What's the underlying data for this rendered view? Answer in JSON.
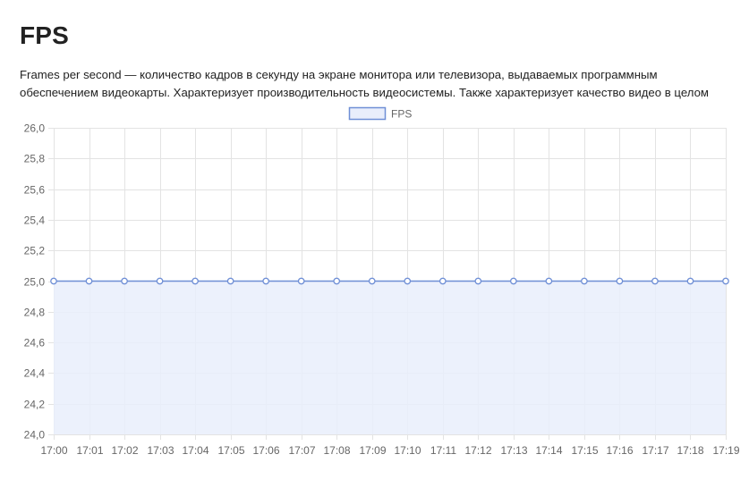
{
  "page": {
    "title": "FPS",
    "description_lines": [
      "Frames per second — количество кадров в секунду на экране монитора или телевизора, выдаваемых программным",
      "обеспечением видеокарты. Характеризует производительность видеосистемы. Также характеризует качество видео в целом"
    ]
  },
  "colors": {
    "line": "#6f8fd6",
    "fill": "#e9eefb",
    "grid": "#e3e3e3",
    "tick_text": "#666666",
    "point_fill": "#ffffff"
  },
  "chart_data": {
    "type": "area",
    "x": [
      "17:00",
      "17:01",
      "17:02",
      "17:03",
      "17:04",
      "17:05",
      "17:06",
      "17:07",
      "17:08",
      "17:09",
      "17:10",
      "17:11",
      "17:12",
      "17:13",
      "17:14",
      "17:15",
      "17:16",
      "17:17",
      "17:18",
      "17:19"
    ],
    "series": [
      {
        "name": "FPS",
        "values": [
          25,
          25,
          25,
          25,
          25,
          25,
          25,
          25,
          25,
          25,
          25,
          25,
          25,
          25,
          25,
          25,
          25,
          25,
          25,
          25
        ]
      }
    ],
    "y_ticks": [
      "26,0",
      "25,8",
      "25,6",
      "25,4",
      "25,2",
      "25,0",
      "24,8",
      "24,6",
      "24,4",
      "24,2",
      "24,0"
    ],
    "ylim": [
      24.0,
      26.0
    ],
    "grid": true,
    "legend_position": "top-center",
    "xlabel": "",
    "ylabel": ""
  }
}
